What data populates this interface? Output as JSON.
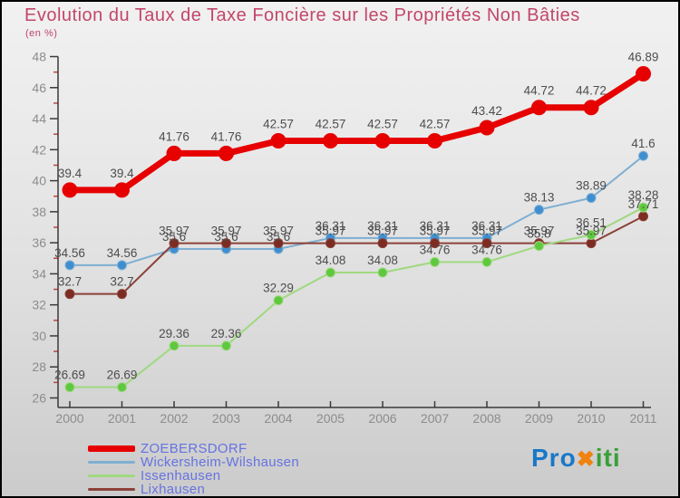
{
  "title": "Evolution du Taux de Taxe Foncière sur les Propriétés Non Bâties",
  "subtitle": "(en %)",
  "colors": {
    "title": "#c2466a",
    "legend_text": "#6673e0",
    "axis_text": "#8c8c8c",
    "data_label_text": "#4d4d4d",
    "axis_line": "#3a3a3a",
    "minor_tick": "#c0443a"
  },
  "logo": {
    "part1": "Pro",
    "part2": "✖",
    "part3": "iti",
    "color1": "#1878c8",
    "color2": "#f0820f",
    "color3": "#38a038"
  },
  "chart_data": {
    "type": "line",
    "title": "Evolution du Taux de Taxe Foncière sur les Propriétés Non Bâties",
    "subtitle": "(en %)",
    "x_labels": [
      "2000",
      "2001",
      "2002",
      "2003",
      "2004",
      "2005",
      "2006",
      "2007",
      "2008",
      "2009",
      "2010",
      "2011"
    ],
    "ylim": [
      26,
      48
    ],
    "ytick_step": 2,
    "grid": false,
    "legend_position": "bottom-left",
    "series": [
      {
        "name": "ZOEBERSDORF",
        "color": "#e60000",
        "marker_color": "#e60000",
        "line_width": 7,
        "marker_r": 8,
        "values": [
          39.4,
          39.4,
          41.76,
          41.76,
          42.57,
          42.57,
          42.57,
          42.57,
          43.42,
          44.72,
          44.72,
          46.89
        ],
        "labels": [
          "39.4",
          "39.4",
          "41.76",
          "41.76",
          "42.57",
          "42.57",
          "42.57",
          "42.57",
          "43.42",
          "44.72",
          "44.72",
          "46.89"
        ]
      },
      {
        "name": "Wickersheim-Wilshausen",
        "color": "#7fafd2",
        "marker_color": "#3f8fd0",
        "line_width": 2,
        "marker_r": 5,
        "values": [
          34.56,
          34.56,
          35.6,
          35.6,
          35.6,
          36.31,
          36.31,
          36.31,
          36.31,
          38.13,
          38.89,
          41.6
        ],
        "labels": [
          "34.56",
          "34.56",
          "35.6",
          "35.6",
          "35.6",
          "36.31",
          "36.31",
          "36.31",
          "36.31",
          "38.13",
          "38.89",
          "41.6"
        ]
      },
      {
        "name": "Issenhausen",
        "color": "#9fd97f",
        "marker_color": "#5fc83f",
        "line_width": 2,
        "marker_r": 5,
        "values": [
          26.69,
          26.69,
          29.36,
          29.36,
          32.29,
          34.08,
          34.08,
          34.76,
          34.76,
          35.8,
          36.51,
          38.28
        ],
        "labels": [
          "26.69",
          "26.69",
          "29.36",
          "29.36",
          "32.29",
          "34.08",
          "34.08",
          "34.76",
          "34.76",
          "35.8",
          "36.51",
          "38.28"
        ]
      },
      {
        "name": "Lixhausen",
        "color": "#8b4138",
        "marker_color": "#7c2c22",
        "line_width": 2,
        "marker_r": 5,
        "values": [
          32.7,
          32.7,
          35.97,
          35.97,
          35.97,
          35.97,
          35.97,
          35.97,
          35.97,
          35.97,
          35.97,
          37.71
        ],
        "labels": [
          "32.7",
          "32.7",
          "35.97",
          "35.97",
          "35.97",
          "35.97",
          "35.97",
          "35.97",
          "35.97",
          "35.97",
          "35.97",
          "37.71"
        ]
      }
    ]
  }
}
